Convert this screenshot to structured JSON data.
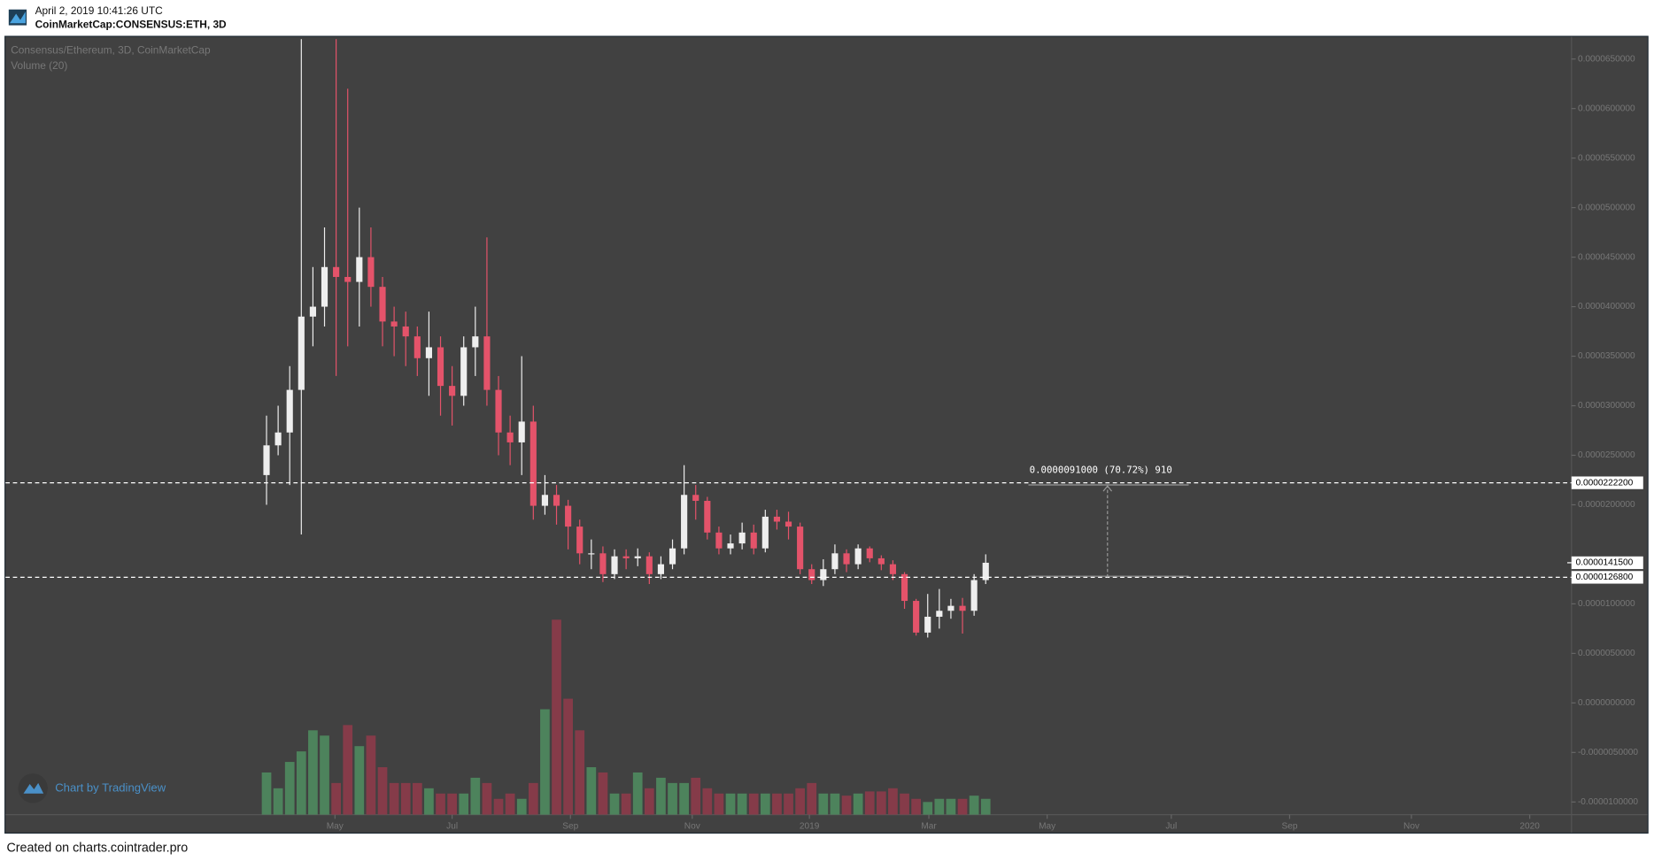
{
  "header": {
    "timestamp": "April 2, 2019 10:41:26 UTC",
    "symbol": "CoinMarketCap:CONSENSUS:ETH, 3D"
  },
  "chart_data": {
    "type": "candlestick",
    "title": "Consensus/Ethereum, 3D, CoinMarketCap",
    "open": [
      2.3e-05,
      2.6e-05,
      2.73e-05,
      3.16e-05,
      3.9e-05,
      4e-05,
      4.4e-05,
      4.3e-05,
      4.25e-05,
      4.5e-05,
      4.2e-05,
      3.85e-05,
      3.8e-05,
      3.7e-05,
      3.48e-05,
      3.59e-05,
      3.2e-05,
      3.1e-05,
      3.59e-05,
      3.7e-05,
      3.16e-05,
      2.73e-05,
      2.63e-05,
      2.84e-05,
      1.99e-05,
      2.1e-05,
      1.99e-05,
      1.78e-05,
      1.51e-05,
      1.51e-05,
      1.3e-05,
      1.48e-05,
      1.46e-05,
      1.48e-05,
      1.3e-05,
      1.4e-05,
      1.56e-05,
      2.1e-05,
      2.04e-05,
      1.72e-05,
      1.56e-05,
      1.61e-05,
      1.72e-05,
      1.56e-05,
      1.88e-05,
      1.83e-05,
      1.78e-05,
      1.35e-05,
      1.24e-05,
      1.35e-05,
      1.51e-05,
      1.4e-05,
      1.56e-05,
      1.46e-05,
      1.4e-05,
      1.3e-05,
      1.03e-05,
      7.1e-06,
      8.7e-06,
      9.3e-06,
      9.8e-06,
      9.3e-06,
      1.24e-05
    ],
    "high": [
      2.9e-05,
      3e-05,
      3.4e-05,
      6.7e-05,
      4.4e-05,
      4.8e-05,
      6.7e-05,
      6.2e-05,
      5e-05,
      4.8e-05,
      4.3e-05,
      4e-05,
      3.95e-05,
      3.8e-05,
      3.95e-05,
      3.7e-05,
      3.4e-05,
      3.7e-05,
      4e-05,
      4.7e-05,
      3.3e-05,
      2.9e-05,
      3.5e-05,
      3e-05,
      2.3e-05,
      2.2e-05,
      2.05e-05,
      1.85e-05,
      1.65e-05,
      1.58e-05,
      1.55e-05,
      1.55e-05,
      1.56e-05,
      1.52e-05,
      1.48e-05,
      1.65e-05,
      2.4e-05,
      2.2e-05,
      2.08e-05,
      1.78e-05,
      1.7e-05,
      1.82e-05,
      1.8e-05,
      1.95e-05,
      1.95e-05,
      1.93e-05,
      1.82e-05,
      1.4e-05,
      1.45e-05,
      1.6e-05,
      1.55e-05,
      1.6e-05,
      1.58e-05,
      1.49e-05,
      1.44e-05,
      1.32e-05,
      1.05e-05,
      1.1e-05,
      1.15e-05,
      1.05e-05,
      1.06e-05,
      1.3e-05,
      1.5e-05
    ],
    "low": [
      2e-05,
      2.5e-05,
      2.2e-05,
      1.7e-05,
      3.6e-05,
      3.8e-05,
      3.3e-05,
      3.6e-05,
      3.8e-05,
      4e-05,
      3.6e-05,
      3.5e-05,
      3.4e-05,
      3.3e-05,
      3.1e-05,
      2.9e-05,
      2.8e-05,
      3e-05,
      3.3e-05,
      3e-05,
      2.5e-05,
      2.4e-05,
      2.3e-05,
      1.85e-05,
      1.9e-05,
      1.8e-05,
      1.55e-05,
      1.4e-05,
      1.35e-05,
      1.22e-05,
      1.25e-05,
      1.35e-05,
      1.38e-05,
      1.2e-05,
      1.25e-05,
      1.35e-05,
      1.5e-05,
      1.85e-05,
      1.65e-05,
      1.5e-05,
      1.5e-05,
      1.55e-05,
      1.5e-05,
      1.52e-05,
      1.75e-05,
      1.65e-05,
      1.3e-05,
      1.2e-05,
      1.18e-05,
      1.3e-05,
      1.32e-05,
      1.35e-05,
      1.42e-05,
      1.34e-05,
      1.24e-05,
      9.5e-06,
      6.8e-06,
      6.6e-06,
      7.5e-06,
      8.5e-06,
      7e-06,
      8.8e-06,
      1.2e-05
    ],
    "close": [
      2.6e-05,
      2.73e-05,
      3.16e-05,
      3.9e-05,
      4e-05,
      4.4e-05,
      4.3e-05,
      4.25e-05,
      4.5e-05,
      4.2e-05,
      3.85e-05,
      3.8e-05,
      3.7e-05,
      3.48e-05,
      3.59e-05,
      3.2e-05,
      3.1e-05,
      3.59e-05,
      3.7e-05,
      3.16e-05,
      2.73e-05,
      2.63e-05,
      2.84e-05,
      1.99e-05,
      2.1e-05,
      1.99e-05,
      1.78e-05,
      1.51e-05,
      1.51e-05,
      1.3e-05,
      1.48e-05,
      1.46e-05,
      1.48e-05,
      1.3e-05,
      1.4e-05,
      1.56e-05,
      2.1e-05,
      2.04e-05,
      1.72e-05,
      1.56e-05,
      1.61e-05,
      1.72e-05,
      1.56e-05,
      1.88e-05,
      1.83e-05,
      1.78e-05,
      1.35e-05,
      1.24e-05,
      1.35e-05,
      1.51e-05,
      1.4e-05,
      1.56e-05,
      1.46e-05,
      1.4e-05,
      1.3e-05,
      1.03e-05,
      7.1e-06,
      8.7e-06,
      9.3e-06,
      9.8e-06,
      9.3e-06,
      1.24e-05,
      1.415e-05
    ],
    "up_color": "#eeeeee",
    "down_color": "#e4536a",
    "volume": {
      "name": "Volume (20)",
      "values": [
        40,
        25,
        50,
        60,
        80,
        75,
        30,
        85,
        65,
        75,
        45,
        30,
        30,
        30,
        25,
        20,
        20,
        20,
        35,
        30,
        15,
        20,
        15,
        30,
        100,
        185,
        110,
        80,
        45,
        40,
        20,
        20,
        40,
        25,
        35,
        30,
        30,
        35,
        25,
        20,
        20,
        20,
        20,
        20,
        20,
        20,
        25,
        30,
        20,
        20,
        18,
        20,
        22,
        22,
        25,
        20,
        15,
        12,
        15,
        15,
        15,
        18,
        15
      ],
      "up_color": "#4f8b5f",
      "down_color": "#8d3b4a",
      "ylim": [
        0,
        200
      ]
    },
    "ylim": [
      -1.1277e-05,
      6.7234e-05
    ],
    "yticks": [
      {
        "value": 6.5e-05,
        "label": "0.0000650000"
      },
      {
        "value": 6e-05,
        "label": "0.0000600000"
      },
      {
        "value": 5.5e-05,
        "label": "0.0000550000"
      },
      {
        "value": 5e-05,
        "label": "0.0000500000"
      },
      {
        "value": 4.5e-05,
        "label": "0.0000450000"
      },
      {
        "value": 4e-05,
        "label": "0.0000400000"
      },
      {
        "value": 3.5e-05,
        "label": "0.0000350000"
      },
      {
        "value": 3e-05,
        "label": "0.0000300000"
      },
      {
        "value": 2.5e-05,
        "label": "0.0000250000"
      },
      {
        "value": 2e-05,
        "label": "0.0000200000"
      },
      {
        "value": 1e-05,
        "label": "0.0000100000"
      },
      {
        "value": 5e-06,
        "label": "0.0000050000"
      },
      {
        "value": 0,
        "label": "0.0000000000"
      },
      {
        "value": -5e-06,
        "label": "-0.0000050000"
      },
      {
        "value": -1e-05,
        "label": "-0.0000100000"
      }
    ],
    "xlim": [
      -22.5,
      112.5
    ],
    "xticks": [
      {
        "value": 5.9,
        "label": "May"
      },
      {
        "value": 16,
        "label": "Jul"
      },
      {
        "value": 26.2,
        "label": "Sep"
      },
      {
        "value": 36.7,
        "label": "Nov"
      },
      {
        "value": 46.8,
        "label": "2019"
      },
      {
        "value": 57.1,
        "label": "Mar"
      },
      {
        "value": 67.3,
        "label": "May"
      },
      {
        "value": 78,
        "label": "Jul"
      },
      {
        "value": 88.2,
        "label": "Sep"
      },
      {
        "value": 98.7,
        "label": "Nov"
      },
      {
        "value": 108.9,
        "label": "2020"
      }
    ],
    "price_lines": [
      {
        "value": 2.222e-05,
        "label": "0.0000222200"
      },
      {
        "value": 1.268e-05,
        "label": "0.0000126800"
      }
    ],
    "last_price": {
      "value": 1.415e-05,
      "label": "0.0000141500"
    },
    "measure_label": "0.0000091000 (70.72%) 910",
    "watermark": "Chart by TradingView"
  },
  "footer": "Created on charts.cointrader.pro"
}
